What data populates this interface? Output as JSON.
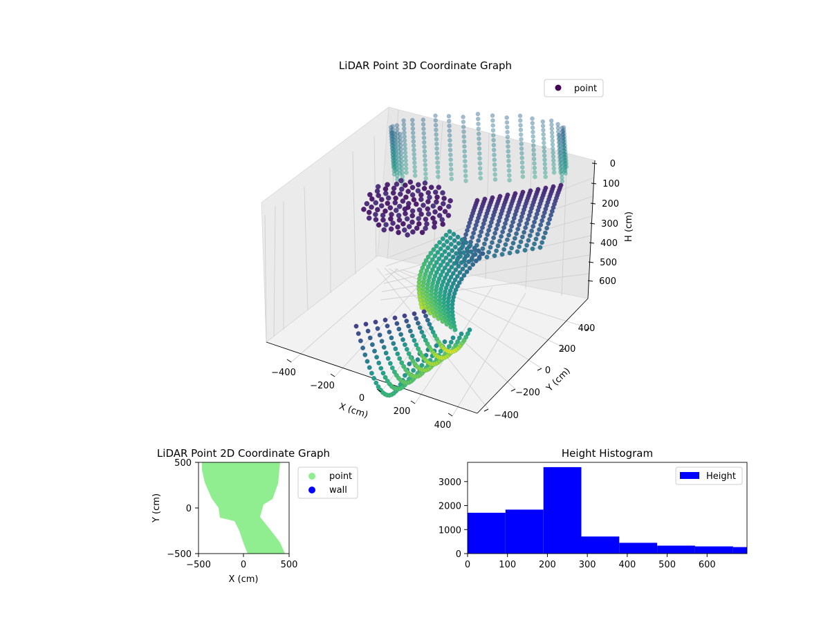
{
  "chart_data": [
    {
      "type": "scatter",
      "dimension": "3d",
      "title": "LiDAR Point 3D Coordinate Graph",
      "xlabel": "X (cm)",
      "ylabel": "Y (cm)",
      "zlabel": "H (cm)",
      "x_ticks": [
        "−400",
        "−200",
        "0",
        "200",
        "400"
      ],
      "y_ticks": [
        "−400",
        "−200",
        "0",
        "200",
        "400"
      ],
      "z_ticks": [
        "0",
        "100",
        "200",
        "300",
        "400",
        "500",
        "600"
      ],
      "xlim": [
        -500,
        500
      ],
      "ylim": [
        -500,
        500
      ],
      "zlim": [
        0,
        700
      ],
      "z_inverted": true,
      "colormap": "viridis",
      "legend": {
        "entries": [
          "point"
        ],
        "placement": "top-right"
      },
      "grid": true
    },
    {
      "type": "scatter",
      "title": "LiDAR Point 2D Coordinate Graph",
      "xlabel": "X (cm)",
      "ylabel": "Y (cm)",
      "x_ticks": [
        "−500",
        "0",
        "500"
      ],
      "y_ticks": [
        "500",
        "0",
        "−500"
      ],
      "xlim": [
        -500,
        500
      ],
      "ylim": [
        -500,
        500
      ],
      "series": [
        {
          "name": "point",
          "color": "#90ee90"
        },
        {
          "name": "wall",
          "color": "#0000ff"
        }
      ],
      "legend": {
        "placement": "outside-right"
      },
      "grid": false
    },
    {
      "type": "bar",
      "subtype": "histogram",
      "title": "Height Histogram",
      "bins": [
        {
          "start": 0,
          "end": 95,
          "count": 1700
        },
        {
          "start": 95,
          "end": 190,
          "count": 1830
        },
        {
          "start": 190,
          "end": 285,
          "count": 3600
        },
        {
          "start": 285,
          "end": 380,
          "count": 710
        },
        {
          "start": 380,
          "end": 475,
          "count": 450
        },
        {
          "start": 475,
          "end": 570,
          "count": 330
        },
        {
          "start": 570,
          "end": 665,
          "count": 300
        },
        {
          "start": 665,
          "end": 700,
          "count": 270
        }
      ],
      "x_ticks": [
        "0",
        "100",
        "200",
        "300",
        "400",
        "500",
        "600"
      ],
      "y_ticks": [
        "0",
        "1000",
        "2000",
        "3000"
      ],
      "xlim": [
        0,
        700
      ],
      "ylim": [
        0,
        3800
      ],
      "series": [
        {
          "name": "Height",
          "color": "#0000ff"
        }
      ],
      "legend": {
        "placement": "top-right"
      },
      "grid": false
    }
  ]
}
